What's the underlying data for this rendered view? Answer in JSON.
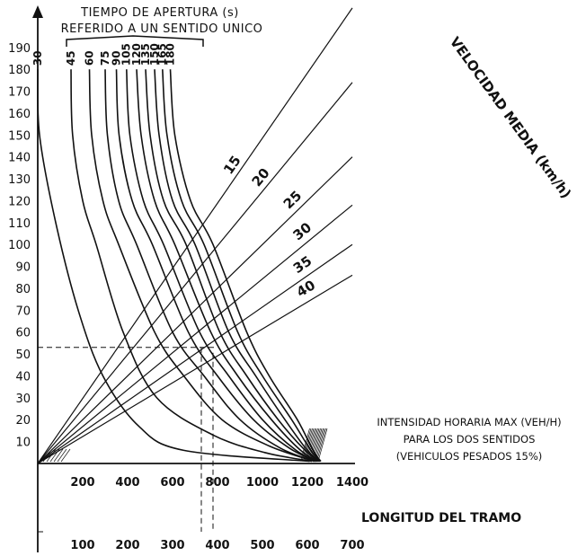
{
  "chart_data": {
    "type": "line",
    "title_line1": "TIEMPO DE APERTURA (s)",
    "title_line2": "REFERIDO A UN SENTIDO UNICO",
    "right_title": "VELOCIDAD MEDIA (km/h)",
    "x1_label": "LONGITUD DEL TRAMO",
    "note_lines": [
      "INTENSIDAD HORARIA MAX (VEH/H)",
      "PARA LOS DOS SENTIDOS",
      "(VEHICULOS PESADOS 15%)"
    ],
    "y_ticks": [
      10,
      20,
      30,
      40,
      50,
      60,
      70,
      80,
      90,
      100,
      110,
      120,
      130,
      140,
      150,
      160,
      170,
      180,
      190
    ],
    "x1_ticks": [
      200,
      400,
      600,
      800,
      1000,
      1200,
      1400
    ],
    "x2_ticks": [
      100,
      200,
      300,
      400,
      500,
      600,
      700
    ],
    "ylim": [
      0,
      200
    ],
    "x1_lim": [
      0,
      1400
    ],
    "x2_lim": [
      0,
      700
    ],
    "opening_time_series": [
      {
        "name": "30",
        "points": [
          [
            0,
            180
          ],
          [
            8,
            150
          ],
          [
            80,
            110
          ],
          [
            180,
            70
          ],
          [
            290,
            40
          ],
          [
            450,
            17
          ],
          [
            650,
            6
          ],
          [
            1210,
            1
          ]
        ]
      },
      {
        "name": "45",
        "points": [
          [
            148,
            180
          ],
          [
            155,
            150
          ],
          [
            200,
            120
          ],
          [
            260,
            100
          ],
          [
            380,
            60
          ],
          [
            530,
            30
          ],
          [
            780,
            13
          ],
          [
            1010,
            5
          ],
          [
            1220,
            1
          ]
        ]
      },
      {
        "name": "60",
        "points": [
          [
            230,
            180
          ],
          [
            240,
            150
          ],
          [
            290,
            120
          ],
          [
            360,
            100
          ],
          [
            520,
            60
          ],
          [
            650,
            40
          ],
          [
            820,
            20
          ],
          [
            1030,
            8
          ],
          [
            1230,
            1
          ]
        ]
      },
      {
        "name": "75",
        "points": [
          [
            300,
            180
          ],
          [
            310,
            150
          ],
          [
            360,
            120
          ],
          [
            440,
            100
          ],
          [
            600,
            60
          ],
          [
            740,
            40
          ],
          [
            900,
            20
          ],
          [
            1080,
            7
          ],
          [
            1235,
            1
          ]
        ]
      },
      {
        "name": "90",
        "points": [
          [
            350,
            180
          ],
          [
            362,
            150
          ],
          [
            420,
            120
          ],
          [
            510,
            100
          ],
          [
            670,
            60
          ],
          [
            800,
            40
          ],
          [
            960,
            20
          ],
          [
            1120,
            7
          ],
          [
            1240,
            1
          ]
        ]
      },
      {
        "name": "105",
        "points": [
          [
            395,
            180
          ],
          [
            410,
            150
          ],
          [
            470,
            120
          ],
          [
            560,
            100
          ],
          [
            720,
            60
          ],
          [
            850,
            40
          ],
          [
            1000,
            20
          ],
          [
            1150,
            6
          ],
          [
            1245,
            1
          ]
        ]
      },
      {
        "name": "120",
        "points": [
          [
            440,
            180
          ],
          [
            460,
            150
          ],
          [
            520,
            120
          ],
          [
            610,
            100
          ],
          [
            770,
            60
          ],
          [
            890,
            40
          ],
          [
            1040,
            20
          ],
          [
            1170,
            6
          ],
          [
            1248,
            1
          ]
        ]
      },
      {
        "name": "135",
        "points": [
          [
            480,
            180
          ],
          [
            500,
            150
          ],
          [
            560,
            120
          ],
          [
            660,
            100
          ],
          [
            810,
            60
          ],
          [
            930,
            40
          ],
          [
            1070,
            20
          ],
          [
            1190,
            6
          ],
          [
            1252,
            1
          ]
        ]
      },
      {
        "name": "150",
        "points": [
          [
            520,
            180
          ],
          [
            540,
            150
          ],
          [
            600,
            120
          ],
          [
            700,
            100
          ],
          [
            850,
            60
          ],
          [
            970,
            40
          ],
          [
            1100,
            20
          ],
          [
            1200,
            6
          ],
          [
            1255,
            1
          ]
        ]
      },
      {
        "name": "165",
        "points": [
          [
            555,
            180
          ],
          [
            575,
            150
          ],
          [
            640,
            120
          ],
          [
            740,
            100
          ],
          [
            890,
            60
          ],
          [
            1000,
            40
          ],
          [
            1130,
            20
          ],
          [
            1215,
            6
          ],
          [
            1258,
            1
          ]
        ]
      },
      {
        "name": "180",
        "points": [
          [
            590,
            180
          ],
          [
            610,
            150
          ],
          [
            680,
            120
          ],
          [
            780,
            100
          ],
          [
            930,
            60
          ],
          [
            1030,
            40
          ],
          [
            1155,
            20
          ],
          [
            1225,
            6
          ],
          [
            1260,
            1
          ]
        ]
      }
    ],
    "speed_series": [
      {
        "name": "15",
        "points": [
          [
            0,
            0
          ],
          [
            1400,
            208
          ]
        ]
      },
      {
        "name": "20",
        "points": [
          [
            0,
            0
          ],
          [
            1400,
            174
          ]
        ]
      },
      {
        "name": "25",
        "points": [
          [
            0,
            0
          ],
          [
            1400,
            140
          ]
        ]
      },
      {
        "name": "30",
        "points": [
          [
            0,
            0
          ],
          [
            1400,
            118
          ]
        ]
      },
      {
        "name": "35",
        "points": [
          [
            0,
            0
          ],
          [
            1400,
            100
          ]
        ]
      },
      {
        "name": "40",
        "points": [
          [
            0,
            0
          ],
          [
            1400,
            86
          ]
        ]
      }
    ],
    "reading_example": {
      "y": 53,
      "x1": 760,
      "x2": 400
    },
    "grid": false
  }
}
